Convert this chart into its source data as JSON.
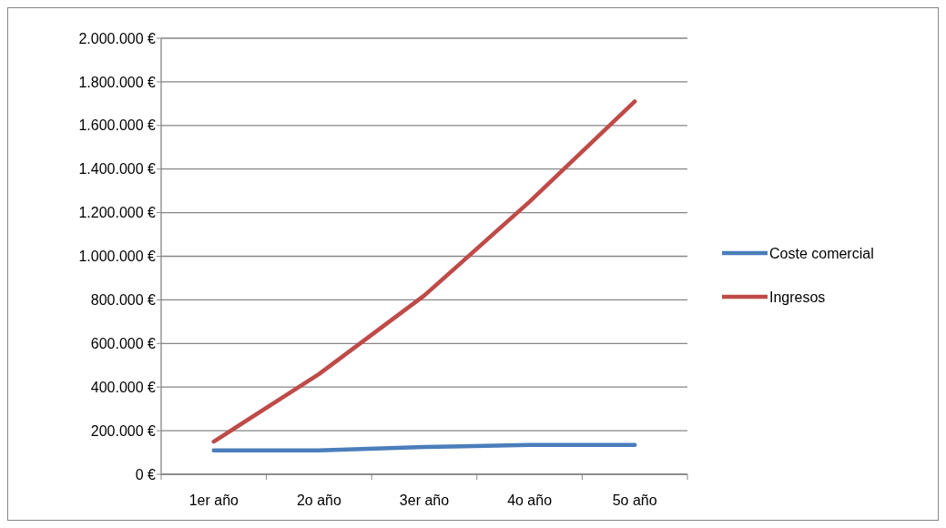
{
  "chart_data": {
    "type": "line",
    "categories": [
      "1er año",
      "2o año",
      "3er año",
      "4o año",
      "5o año"
    ],
    "series": [
      {
        "name": "Coste comercial",
        "color": "#4a7ebb",
        "values": [
          110000,
          110000,
          125000,
          135000,
          135000
        ]
      },
      {
        "name": "Ingresos",
        "color": "#be4b48",
        "values": [
          150000,
          460000,
          820000,
          1250000,
          1710000
        ]
      }
    ],
    "ylim": [
      0,
      2000000
    ],
    "yticks": [
      {
        "value": 0,
        "label": "0 €"
      },
      {
        "value": 200000,
        "label": "200.000 €"
      },
      {
        "value": 400000,
        "label": "400.000 €"
      },
      {
        "value": 600000,
        "label": "600.000 €"
      },
      {
        "value": 800000,
        "label": "800.000 €"
      },
      {
        "value": 1000000,
        "label": "1.000.000 €"
      },
      {
        "value": 1200000,
        "label": "1.200.000 €"
      },
      {
        "value": 1400000,
        "label": "1.400.000 €"
      },
      {
        "value": 1600000,
        "label": "1.600.000 €"
      },
      {
        "value": 1800000,
        "label": "1.800.000 €"
      },
      {
        "value": 2000000,
        "label": "2.000.000 €"
      }
    ],
    "grid": "y",
    "legend": "right",
    "marker": "none",
    "line_style": "solid"
  }
}
